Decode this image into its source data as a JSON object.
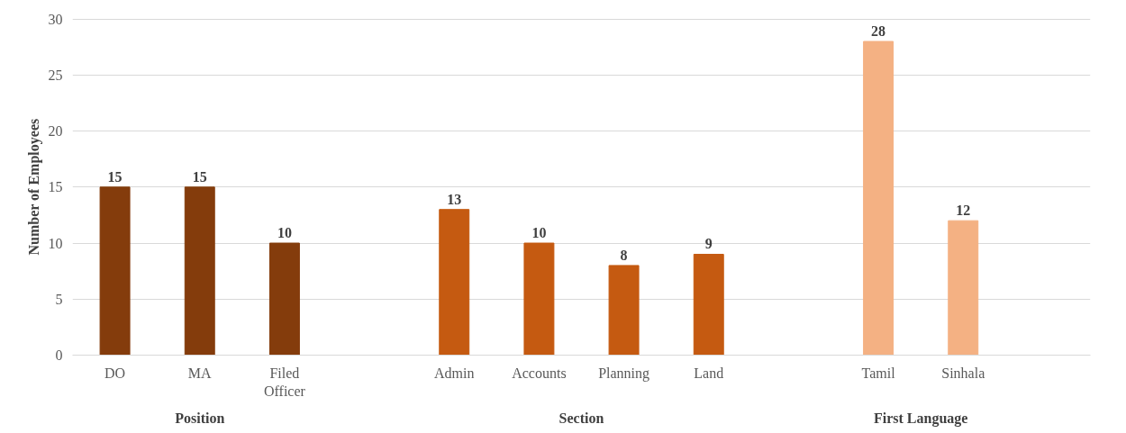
{
  "chart_data": {
    "type": "bar",
    "ylabel": "Number of Employees",
    "categories": [
      "DO",
      "MA",
      "Filed\nOfficer",
      null,
      "Admin",
      "Accounts",
      "Planning",
      "Land",
      null,
      "Tamil",
      "Sinhala",
      null
    ],
    "values": [
      15,
      15,
      10,
      null,
      13,
      10,
      8,
      9,
      null,
      28,
      12,
      null
    ],
    "colors": [
      "#843c0c",
      "#843c0c",
      "#843c0c",
      null,
      "#c55a11",
      "#c55a11",
      "#c55a11",
      "#c55a11",
      null,
      "#f4b183",
      "#f4b183",
      null
    ],
    "ylim": [
      0,
      30
    ],
    "yticks": [
      0,
      5,
      10,
      15,
      20,
      25,
      30
    ],
    "grid": "y",
    "data_labels": true,
    "annotations": [
      "Position",
      "Section",
      "First Language"
    ]
  }
}
